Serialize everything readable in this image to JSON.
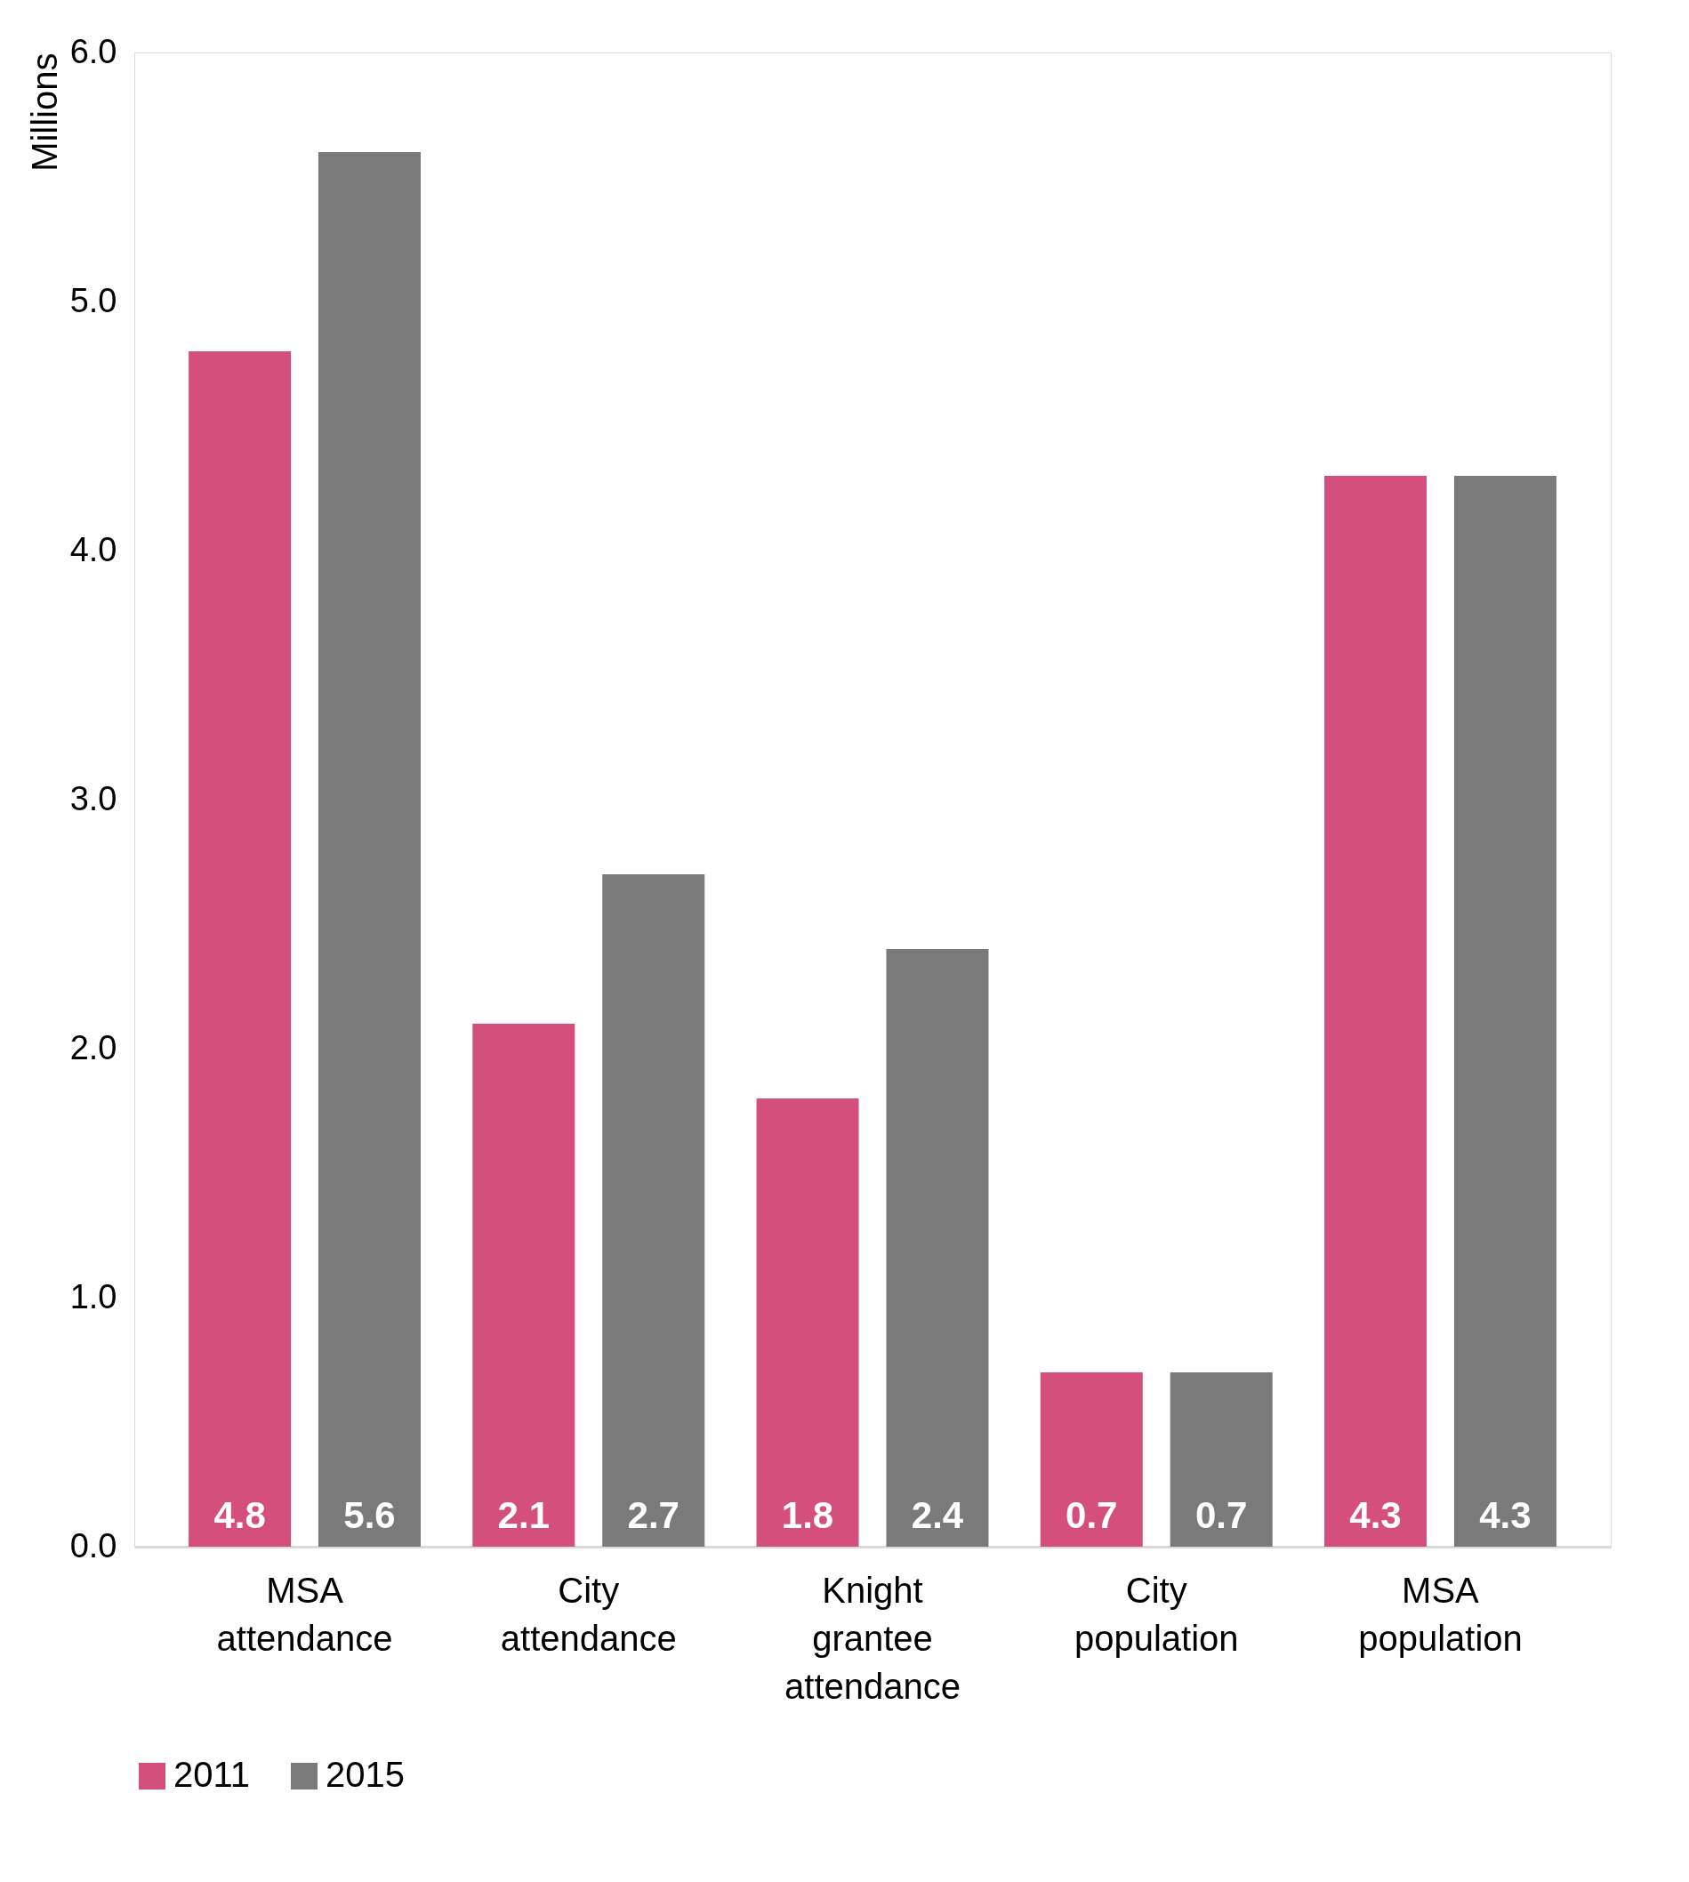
{
  "chart_data": {
    "type": "bar",
    "ylabel": "Millions",
    "categories": [
      "MSA attendance",
      "City attendance",
      "Knight grantee attendance",
      "City population",
      "MSA population"
    ],
    "series": [
      {
        "name": "2011",
        "color": "#d44f7b",
        "values": [
          4.8,
          2.1,
          1.8,
          0.7,
          4.3
        ]
      },
      {
        "name": "2015",
        "color": "#7a7a7a",
        "values": [
          5.6,
          2.7,
          2.4,
          0.7,
          4.3
        ]
      }
    ],
    "ylim": [
      0,
      6
    ],
    "yticks": [
      {
        "value": 0,
        "label": "0.0"
      },
      {
        "value": 1,
        "label": "1.0"
      },
      {
        "value": 2,
        "label": "2.0"
      },
      {
        "value": 3,
        "label": "3.0"
      },
      {
        "value": 4,
        "label": "4.0"
      },
      {
        "value": 5,
        "label": "5.0"
      },
      {
        "value": 6,
        "label": "6.0"
      }
    ],
    "data_labels": true,
    "grid": false,
    "legend": "bottom"
  }
}
